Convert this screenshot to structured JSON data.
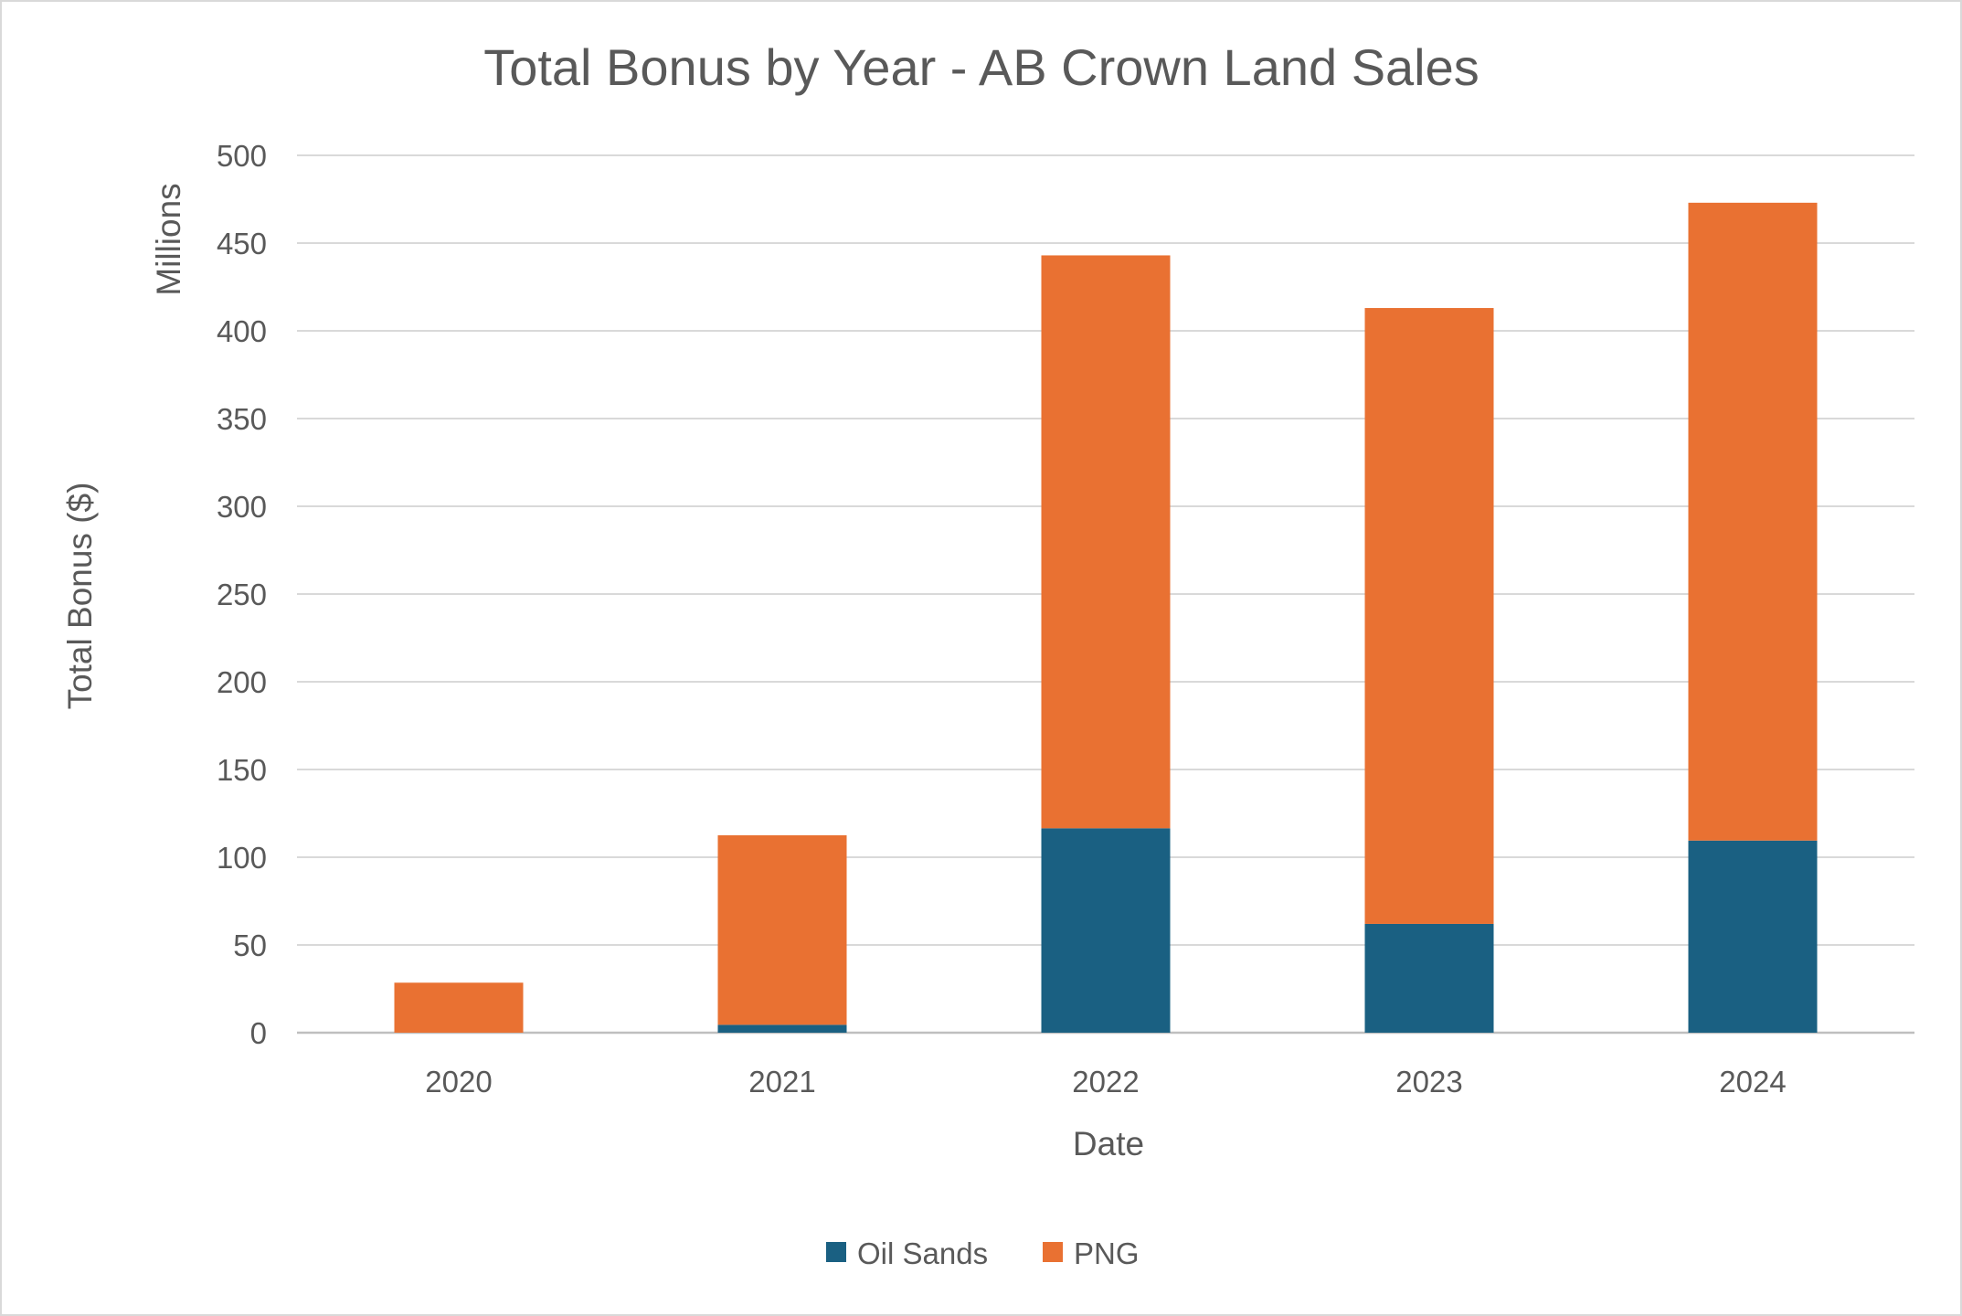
{
  "chart_data": {
    "type": "bar",
    "stacked": true,
    "title": "Total Bonus by Year - AB Crown Land Sales",
    "xlabel": "Date",
    "ylabel": "Total Bonus ($)",
    "y_unit_label": "Millions",
    "categories": [
      "2020",
      "2021",
      "2022",
      "2023",
      "2024"
    ],
    "series": [
      {
        "name": "Oil Sands",
        "color": "#1a6082",
        "values": [
          0,
          4.5,
          116.5,
          62,
          109.5
        ]
      },
      {
        "name": "PNG",
        "color": "#e97132",
        "values": [
          28.5,
          108,
          326.5,
          351,
          363.5
        ]
      }
    ],
    "ylim": [
      0,
      500
    ],
    "yticks": [
      "0",
      "50",
      "100",
      "150",
      "200",
      "250",
      "300",
      "350",
      "400",
      "450",
      "500"
    ],
    "grid": true,
    "legend_position": "bottom"
  }
}
